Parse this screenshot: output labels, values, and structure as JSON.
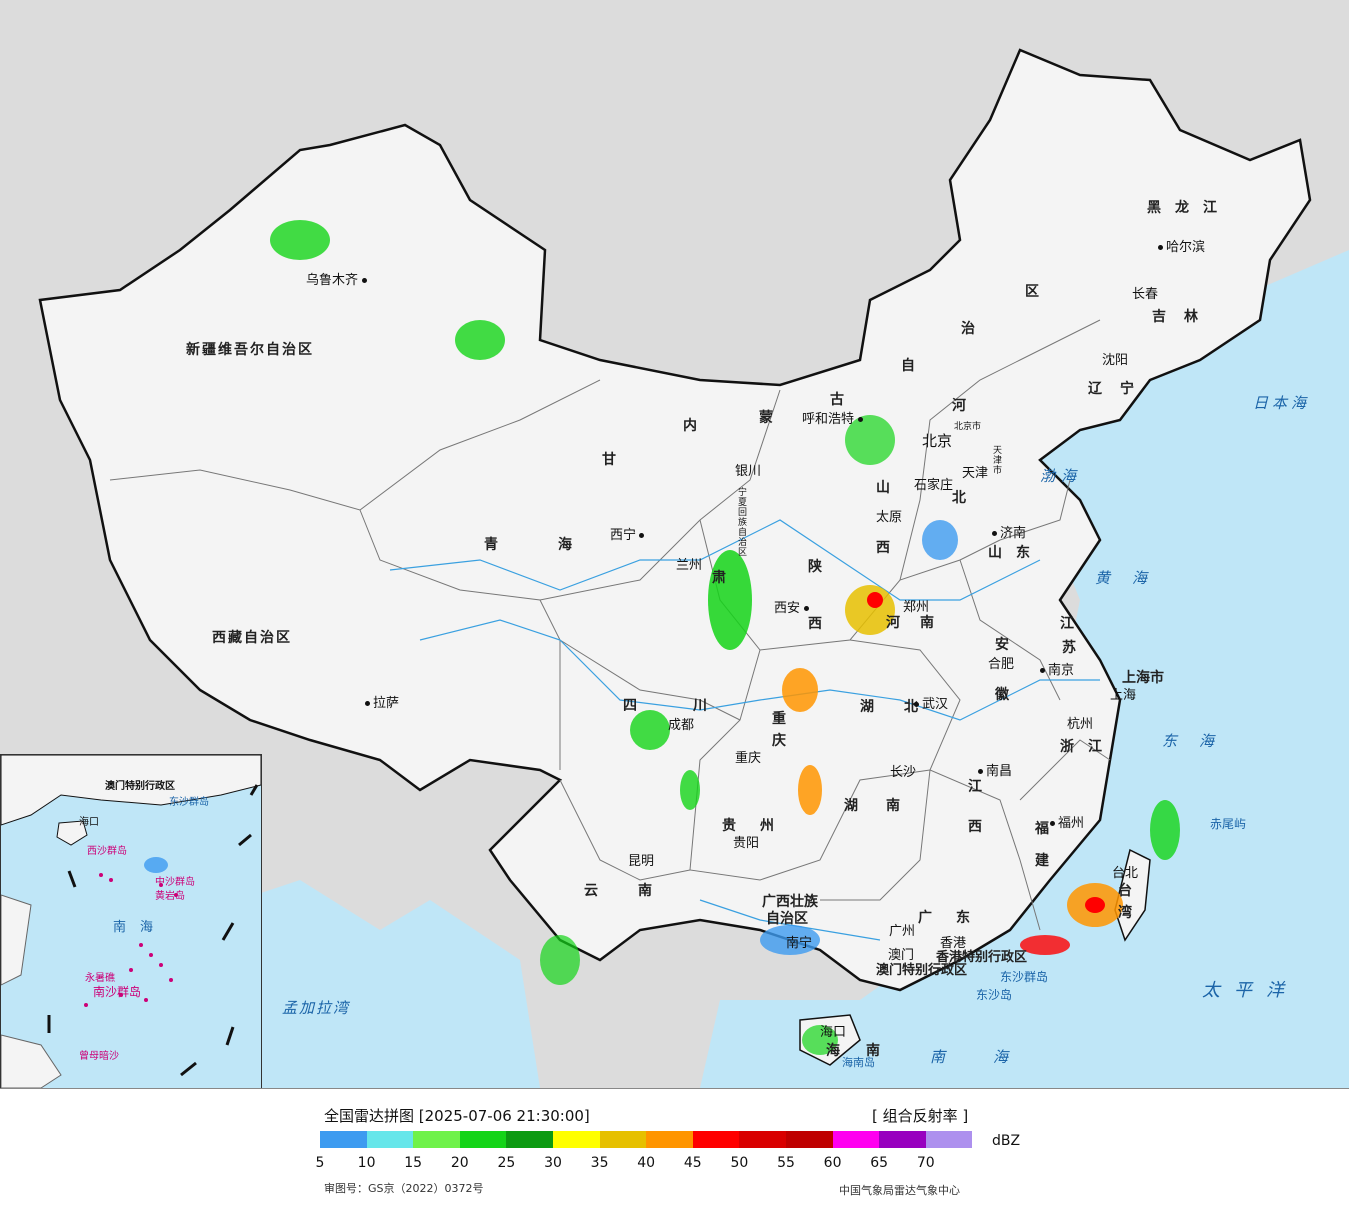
{
  "provinces": [
    {
      "id": "xinjiang",
      "text": "新疆维吾尔自治区"
    },
    {
      "id": "xizang",
      "text": "西藏自治区"
    },
    {
      "id": "qinghai-1",
      "text": "青"
    },
    {
      "id": "qinghai-2",
      "text": "海"
    },
    {
      "id": "gansu-1",
      "text": "甘"
    },
    {
      "id": "gansu-2",
      "text": "肃"
    },
    {
      "id": "nmg-1",
      "text": "内"
    },
    {
      "id": "nmg-2",
      "text": "蒙"
    },
    {
      "id": "nmg-3",
      "text": "古"
    },
    {
      "id": "nmg-4",
      "text": "自"
    },
    {
      "id": "nmg-5",
      "text": "治"
    },
    {
      "id": "nmg-6",
      "text": "区"
    },
    {
      "id": "heilongjiang",
      "text": "黑龙江"
    },
    {
      "id": "jilin",
      "text": "吉林"
    },
    {
      "id": "liaoning",
      "text": "辽宁"
    },
    {
      "id": "hebei-1",
      "text": "河"
    },
    {
      "id": "hebei-2",
      "text": "北"
    },
    {
      "id": "shanxi-1",
      "text": "山"
    },
    {
      "id": "shanxi-2",
      "text": "西"
    },
    {
      "id": "shaanxi-1",
      "text": "陕"
    },
    {
      "id": "shaanxi-2",
      "text": "西"
    },
    {
      "id": "ningxia",
      "text": "宁夏回族自治区"
    },
    {
      "id": "shandong",
      "text": "山东"
    },
    {
      "id": "henan",
      "text": "河南"
    },
    {
      "id": "jiangsu-1",
      "text": "江"
    },
    {
      "id": "jiangsu-2",
      "text": "苏"
    },
    {
      "id": "anhui-1",
      "text": "安"
    },
    {
      "id": "anhui-2",
      "text": "徽"
    },
    {
      "id": "hubei",
      "text": "湖北"
    },
    {
      "id": "sichuan",
      "text": "四川"
    },
    {
      "id": "chongqing",
      "text": "重庆"
    },
    {
      "id": "shanghai",
      "text": "上海市"
    },
    {
      "id": "zhejiang",
      "text": "浙江"
    },
    {
      "id": "jiangxi-1",
      "text": "江"
    },
    {
      "id": "jiangxi-2",
      "text": "西"
    },
    {
      "id": "hunan",
      "text": "湖南"
    },
    {
      "id": "guizhou",
      "text": "贵州"
    },
    {
      "id": "yunnan",
      "text": "云南"
    },
    {
      "id": "guangxi-1",
      "text": "广西壮族"
    },
    {
      "id": "guangxi-2",
      "text": "自治区"
    },
    {
      "id": "guangdong",
      "text": "广东"
    },
    {
      "id": "fujian-1",
      "text": "福"
    },
    {
      "id": "fujian-2",
      "text": "建"
    },
    {
      "id": "taiwan-1",
      "text": "台"
    },
    {
      "id": "taiwan-2",
      "text": "湾"
    },
    {
      "id": "hainan-1",
      "text": "海"
    },
    {
      "id": "hainan-2",
      "text": "南"
    },
    {
      "id": "hk-sar",
      "text": "香港特别行政区"
    },
    {
      "id": "macao-sar",
      "text": "澳门特别行政区"
    }
  ],
  "cities": [
    {
      "id": "urumqi",
      "text": "乌鲁木齐"
    },
    {
      "id": "lhasa",
      "text": "拉萨"
    },
    {
      "id": "xining",
      "text": "西宁"
    },
    {
      "id": "lanzhou",
      "text": "兰州"
    },
    {
      "id": "yinchuan",
      "text": "银川"
    },
    {
      "id": "hohhot",
      "text": "呼和浩特"
    },
    {
      "id": "beijing",
      "text": "北京"
    },
    {
      "id": "beijing-shi",
      "text": "北京市"
    },
    {
      "id": "tianjin",
      "text": "天津"
    },
    {
      "id": "tianjin-shi",
      "text": "天津市"
    },
    {
      "id": "shijiazhuang",
      "text": "石家庄"
    },
    {
      "id": "taiyuan",
      "text": "太原"
    },
    {
      "id": "jinan",
      "text": "济南"
    },
    {
      "id": "xian",
      "text": "西安"
    },
    {
      "id": "zhengzhou",
      "text": "郑州"
    },
    {
      "id": "hefei",
      "text": "合肥"
    },
    {
      "id": "nanjing",
      "text": "南京"
    },
    {
      "id": "shanghai-city",
      "text": "上海"
    },
    {
      "id": "hangzhou",
      "text": "杭州"
    },
    {
      "id": "wuhan",
      "text": "武汉"
    },
    {
      "id": "chengdu",
      "text": "成都"
    },
    {
      "id": "chongqing-city",
      "text": "重庆"
    },
    {
      "id": "changsha",
      "text": "长沙"
    },
    {
      "id": "nanchang",
      "text": "南昌"
    },
    {
      "id": "fuzhou",
      "text": "福州"
    },
    {
      "id": "taibei",
      "text": "台北"
    },
    {
      "id": "guiyang",
      "text": "贵阳"
    },
    {
      "id": "kunming",
      "text": "昆明"
    },
    {
      "id": "nanning",
      "text": "南宁"
    },
    {
      "id": "guangzhou",
      "text": "广州"
    },
    {
      "id": "xianggang",
      "text": "香港"
    },
    {
      "id": "aomen",
      "text": "澳门"
    },
    {
      "id": "haikou",
      "text": "海口"
    },
    {
      "id": "harbin",
      "text": "哈尔滨"
    },
    {
      "id": "changchun",
      "text": "长春"
    },
    {
      "id": "shenyang",
      "text": "沈阳"
    },
    {
      "id": "hainan-dao",
      "text": "海南岛"
    },
    {
      "id": "dongsha-qundao",
      "text": "东沙群岛"
    },
    {
      "id": "dongsha-dao",
      "text": "东沙岛"
    },
    {
      "id": "chiwei-yu",
      "text": "赤尾屿"
    }
  ],
  "seas": [
    {
      "id": "bohai",
      "text": "渤海"
    },
    {
      "id": "huanghai",
      "text": "黄海"
    },
    {
      "id": "donghai",
      "text": "东海"
    },
    {
      "id": "nanhai",
      "text": "南海"
    },
    {
      "id": "taipingyang",
      "text": "太平洋"
    },
    {
      "id": "ribenhai",
      "text": "日本海"
    },
    {
      "id": "mengjialawan",
      "text": "孟加拉湾"
    }
  ],
  "inset_labels": [
    {
      "id": "i-nanhai",
      "text": "南海"
    },
    {
      "id": "i-xisha",
      "text": "西沙群岛"
    },
    {
      "id": "i-zhongsha",
      "text": "中沙群岛"
    },
    {
      "id": "i-huangyan",
      "text": "黄岩岛"
    },
    {
      "id": "i-nansha",
      "text": "南沙群岛"
    },
    {
      "id": "i-yongshu",
      "text": "永暑礁"
    },
    {
      "id": "i-zengmu",
      "text": "曾母暗沙"
    },
    {
      "id": "i-aomen",
      "text": "澳门特别行政区"
    },
    {
      "id": "i-haikou",
      "text": "海口"
    },
    {
      "id": "i-dongsha",
      "text": "东沙群岛"
    }
  ],
  "legend": {
    "title": "全国雷达拼图 [2025-07-06 21:30:00]",
    "product": "[ 组合反射率 ]",
    "unit": "dBZ",
    "colors": [
      "#3d9bf0",
      "#66e6ea",
      "#6ff24a",
      "#14d418",
      "#0c9a12",
      "#ffff00",
      "#e6c000",
      "#ff9500",
      "#ff0000",
      "#d90000",
      "#bf0000",
      "#ff00f0",
      "#9800bf",
      "#ad90ee"
    ],
    "ticks": [
      "5",
      "10",
      "15",
      "20",
      "25",
      "30",
      "35",
      "40",
      "45",
      "50",
      "55",
      "60",
      "65",
      "70"
    ],
    "review_no": "审图号：GS京（2022）0372号",
    "center": "中国气象局雷达气象中心"
  }
}
